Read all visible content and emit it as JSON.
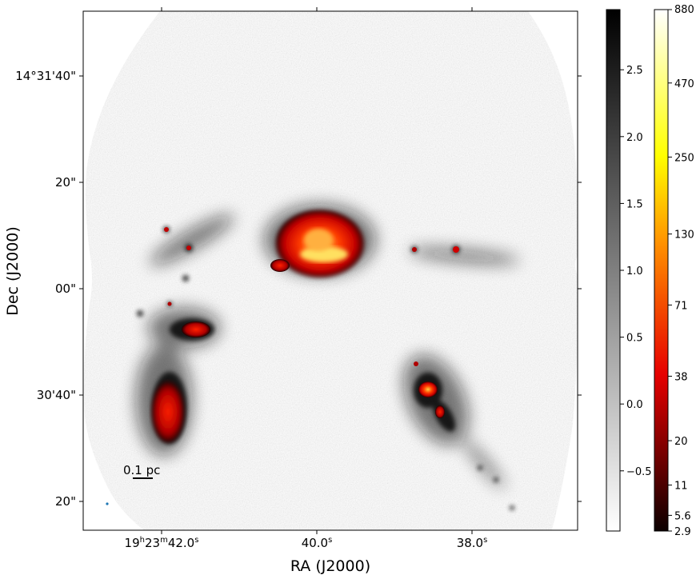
{
  "chart_data": {
    "type": "heatmap",
    "title": "",
    "xlabel": "RA (J2000)",
    "ylabel": "Dec (J2000)",
    "x_ticks": [
      {
        "label": "19h23m42.0s",
        "parts": [
          "19",
          "h",
          "23",
          "m",
          "42.0",
          "s"
        ]
      },
      {
        "label": "40.0s",
        "parts": [
          "40.0",
          "s"
        ]
      },
      {
        "label": "38.0s",
        "parts": [
          "38.0",
          "s"
        ]
      }
    ],
    "y_ticks": [
      "14°31'40\"",
      "20\"",
      "00\"",
      "30'40\"",
      "20\""
    ],
    "scalebar_label": "0.1 pc",
    "colorbar_gray": {
      "ticks": [
        "2.5",
        "2.0",
        "1.5",
        "1.0",
        "0.5",
        "0.0",
        "−0.5"
      ],
      "tick_values": [
        2.5,
        2.0,
        1.5,
        1.0,
        0.5,
        0.0,
        -0.5
      ],
      "range": [
        -0.95,
        2.95
      ],
      "colormap": "gray_r"
    },
    "colorbar_hot": {
      "ticks": [
        "880",
        "470",
        "250",
        "130",
        "71",
        "38",
        "20",
        "11",
        "5.6",
        "2.9"
      ],
      "tick_values": [
        880,
        470,
        250,
        130,
        71,
        38,
        20,
        11,
        5.6,
        2.9
      ],
      "range": [
        2.9,
        880
      ],
      "scale": "log",
      "colormap": "hot"
    },
    "grid": false
  }
}
